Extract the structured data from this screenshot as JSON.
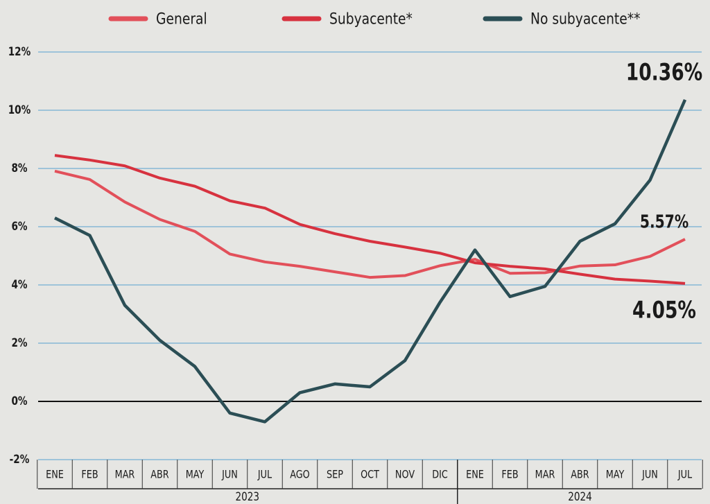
{
  "chart_data": {
    "type": "line",
    "categories": [
      "ENE",
      "FEB",
      "MAR",
      "ABR",
      "MAY",
      "JUN",
      "JUL",
      "AGO",
      "SEP",
      "OCT",
      "NOV",
      "DIC",
      "ENE",
      "FEB",
      "MAR",
      "ABR",
      "MAY",
      "JUN",
      "JUL"
    ],
    "category_years": [
      "2023",
      "2023",
      "2023",
      "2023",
      "2023",
      "2023",
      "2023",
      "2023",
      "2023",
      "2023",
      "2023",
      "2023",
      "2024",
      "2024",
      "2024",
      "2024",
      "2024",
      "2024",
      "2024"
    ],
    "series": [
      {
        "name": "General",
        "color": "#e2505a",
        "values": [
          7.91,
          7.62,
          6.85,
          6.25,
          5.84,
          5.06,
          4.79,
          4.64,
          4.45,
          4.26,
          4.32,
          4.66,
          4.88,
          4.4,
          4.42,
          4.65,
          4.69,
          4.98,
          5.57
        ],
        "value_labels": [
          null,
          null,
          null,
          null,
          null,
          null,
          null,
          null,
          null,
          null,
          null,
          null,
          null,
          null,
          null,
          null,
          null,
          null,
          "5.57%"
        ]
      },
      {
        "name": "Subyacente*",
        "color": "#d7323f",
        "values": [
          8.45,
          8.29,
          8.09,
          7.67,
          7.39,
          6.89,
          6.64,
          6.08,
          5.76,
          5.5,
          5.3,
          5.09,
          4.76,
          4.64,
          4.55,
          4.37,
          4.2,
          4.13,
          4.05
        ],
        "value_labels": [
          null,
          null,
          null,
          null,
          null,
          null,
          null,
          null,
          null,
          null,
          null,
          null,
          null,
          null,
          null,
          null,
          null,
          null,
          "4.05%"
        ]
      },
      {
        "name": "No subyacente**",
        "color": "#2b4e55",
        "values": [
          6.3,
          5.7,
          3.3,
          2.1,
          1.2,
          -0.4,
          -0.7,
          0.3,
          0.6,
          0.5,
          1.4,
          3.4,
          5.2,
          3.6,
          3.95,
          5.5,
          6.1,
          7.6,
          10.36
        ],
        "value_labels": [
          null,
          null,
          null,
          null,
          null,
          null,
          null,
          null,
          null,
          null,
          null,
          null,
          null,
          null,
          null,
          null,
          null,
          null,
          "10.36%"
        ]
      }
    ],
    "ylim": [
      -2,
      12
    ],
    "yticks": [
      {
        "value": -2,
        "label": "-2%"
      },
      {
        "value": 0,
        "label": "0%"
      },
      {
        "value": 2,
        "label": "2%"
      },
      {
        "value": 4,
        "label": "4%"
      },
      {
        "value": 6,
        "label": "6%"
      },
      {
        "value": 8,
        "label": "8%"
      },
      {
        "value": 10,
        "label": "10%"
      },
      {
        "value": 12,
        "label": "12%"
      }
    ],
    "grid": true
  }
}
